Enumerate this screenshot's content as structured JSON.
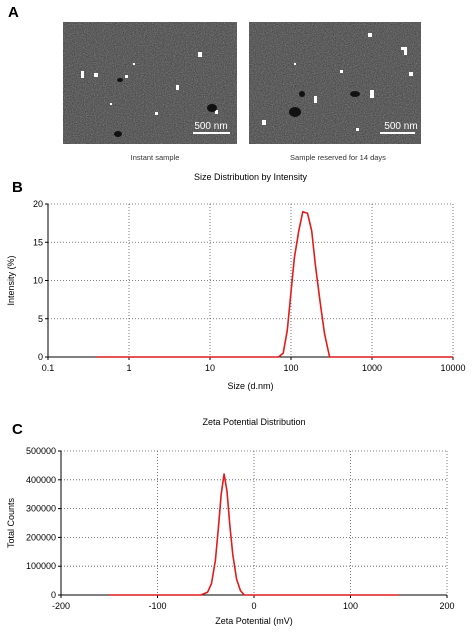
{
  "panels": {
    "a": "A",
    "b": "B",
    "c": "C"
  },
  "micrographs": [
    {
      "caption": "Instant sample",
      "scale_bar": "500 nm"
    },
    {
      "caption": "Sample reserved for 14 days",
      "scale_bar": "500 nm"
    }
  ],
  "chart_data": [
    {
      "type": "line",
      "title": "Size Distribution by Intensity",
      "xlabel": "Size (d.nm)",
      "ylabel": "Intensity (%)",
      "xscale": "log",
      "xlim": [
        0.1,
        10000
      ],
      "ylim": [
        0,
        20
      ],
      "xticks": [
        0.1,
        1,
        10,
        100,
        1000,
        10000
      ],
      "xtick_labels": [
        "0.1",
        "1",
        "10",
        "100",
        "1000",
        "10000"
      ],
      "yticks": [
        0,
        5,
        10,
        15,
        20
      ],
      "ytick_labels": [
        "0",
        "5",
        "10",
        "15",
        "20"
      ],
      "grid": "dotted",
      "series_color": "#e01b1b",
      "x": [
        0.4,
        70,
        80,
        90,
        100,
        110,
        125,
        140,
        160,
        180,
        200,
        230,
        260,
        300,
        10000
      ],
      "y": [
        0,
        0,
        0.5,
        3.5,
        8.5,
        13,
        16.5,
        19,
        18.8,
        16.5,
        12,
        7,
        3,
        0,
        0
      ]
    },
    {
      "type": "line",
      "title": "Zeta Potential Distribution",
      "xlabel": "Zeta Potential (mV)",
      "ylabel": "Total Counts",
      "xlim": [
        -200,
        200
      ],
      "ylim": [
        0,
        500000
      ],
      "xticks": [
        -200,
        -100,
        0,
        100,
        200
      ],
      "xtick_labels": [
        "-200",
        "-100",
        "0",
        "100",
        "200"
      ],
      "yticks": [
        0,
        100000,
        200000,
        300000,
        400000,
        500000
      ],
      "ytick_labels": [
        "0",
        "100000",
        "200000",
        "300000",
        "400000",
        "500000"
      ],
      "grid": "dotted",
      "series_color": "#e01b1b",
      "x": [
        -150,
        -55,
        -48,
        -44,
        -40,
        -37,
        -34,
        -31,
        -28,
        -25,
        -22,
        -18,
        -14,
        -10,
        150
      ],
      "y": [
        0,
        0,
        10000,
        40000,
        120000,
        230000,
        350000,
        420000,
        360000,
        240000,
        140000,
        55000,
        15000,
        0,
        0
      ]
    }
  ]
}
